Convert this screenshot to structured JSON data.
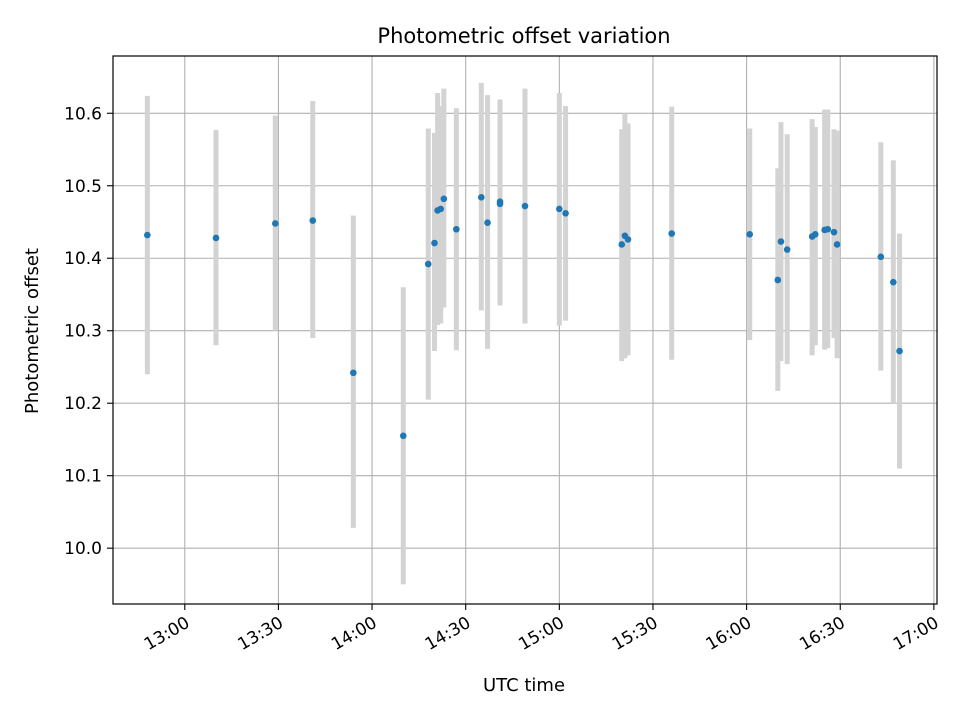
{
  "chart_data": {
    "type": "scatter",
    "title": "Photometric offset variation",
    "xlabel": "UTC time",
    "ylabel": "Photometric offset",
    "grid": true,
    "x_tick_labels": [
      "13:00",
      "13:30",
      "14:00",
      "14:30",
      "15:00",
      "15:30",
      "16:00",
      "16:30",
      "17:00"
    ],
    "y_tick_labels": [
      "10.0",
      "10.1",
      "10.2",
      "10.3",
      "10.4",
      "10.5",
      "10.6"
    ],
    "xlim": [
      "12:37",
      "17:01"
    ],
    "ylim": [
      9.923,
      10.679
    ],
    "colors": {
      "point": "#1f77b4",
      "errorbar": "#d3d3d3",
      "grid": "#b0b0b0"
    },
    "series": [
      {
        "x": [
          "12:48",
          "13:10",
          "13:29",
          "13:41",
          "13:54",
          "14:10",
          "14:18",
          "14:20",
          "14:21",
          "14:22",
          "14:23",
          "14:27",
          "14:35",
          "14:37",
          "14:41",
          "14:41",
          "14:49",
          "15:00",
          "15:02",
          "15:20",
          "15:21",
          "15:22",
          "15:36",
          "16:01",
          "16:10",
          "16:11",
          "16:13",
          "16:21",
          "16:22",
          "16:25",
          "16:26",
          "16:28",
          "16:29",
          "16:43",
          "16:47",
          "16:49"
        ],
        "y": [
          10.432,
          10.428,
          10.448,
          10.452,
          10.242,
          10.155,
          10.392,
          10.421,
          10.466,
          10.468,
          10.482,
          10.44,
          10.484,
          10.449,
          10.478,
          10.475,
          10.472,
          10.468,
          10.462,
          10.419,
          10.431,
          10.426,
          10.434,
          10.433,
          10.37,
          10.423,
          10.412,
          10.43,
          10.433,
          10.439,
          10.44,
          10.436,
          10.419,
          10.402,
          10.367,
          10.272
        ],
        "yerr_low": [
          10.24,
          10.28,
          10.3,
          10.29,
          10.028,
          9.95,
          10.205,
          10.272,
          10.308,
          10.31,
          10.332,
          10.273,
          10.328,
          10.275,
          10.335,
          10.335,
          10.31,
          10.307,
          10.314,
          10.258,
          10.262,
          10.266,
          10.26,
          10.287,
          10.217,
          10.258,
          10.254,
          10.266,
          10.28,
          10.274,
          10.276,
          10.29,
          10.262,
          10.245,
          10.2,
          10.11
        ],
        "yerr_high": [
          10.624,
          10.577,
          10.597,
          10.617,
          10.459,
          10.36,
          10.579,
          10.573,
          10.628,
          10.61,
          10.634,
          10.607,
          10.642,
          10.625,
          10.619,
          10.618,
          10.634,
          10.628,
          10.61,
          10.578,
          10.6,
          10.586,
          10.609,
          10.579,
          10.524,
          10.588,
          10.571,
          10.592,
          10.581,
          10.605,
          10.605,
          10.578,
          10.576,
          10.56,
          10.535,
          10.434
        ]
      }
    ]
  }
}
